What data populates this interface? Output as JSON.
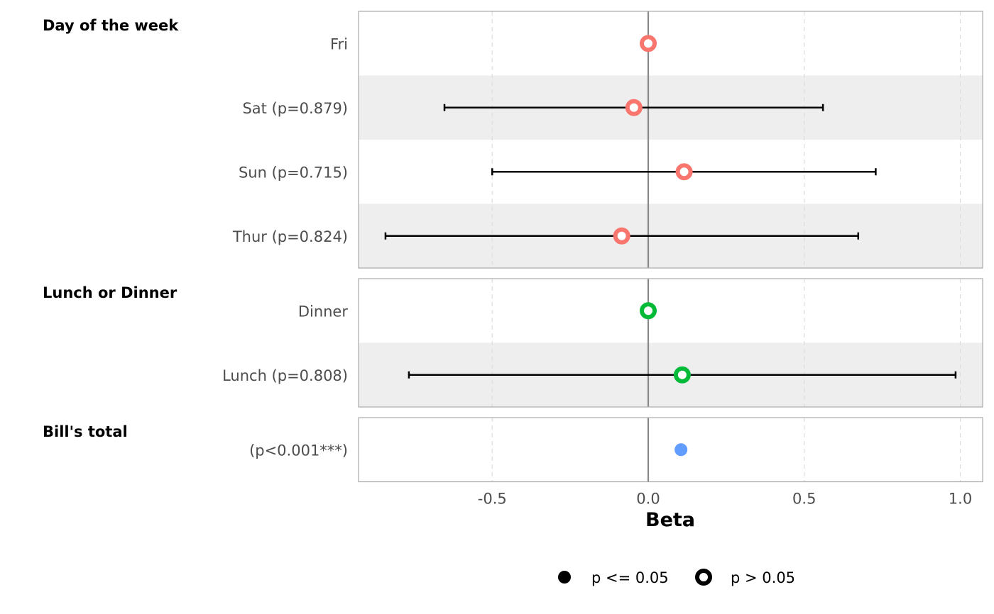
{
  "chart_data": {
    "type": "forest",
    "xlabel": "Beta",
    "xlim": [
      -0.93,
      1.07
    ],
    "x_ticks": [
      -0.5,
      0.0,
      0.5,
      1.0
    ],
    "x_tick_labels": [
      "-0.5",
      "0.0",
      "0.5",
      "1.0"
    ],
    "reference_line": 0,
    "grid": true,
    "legend_position": "bottom",
    "legend": [
      {
        "label": "p <= 0.05",
        "marker": "filled"
      },
      {
        "label": "p > 0.05",
        "marker": "hollow"
      }
    ],
    "colors": {
      "Day of the week": "#F8766D",
      "Lunch or Dinner": "#00BA38",
      "Bill's total": "#619CFF",
      "stripe": "#EEEEEE",
      "zero_line": "#888888",
      "grid": "#DDDDDD",
      "panel_border": "#AAAAAA"
    },
    "groups": [
      {
        "name": "Day of the week",
        "rows": [
          {
            "label": "Fri",
            "estimate": 0.0,
            "ci": null,
            "significant": false
          },
          {
            "label": "Sat (p=0.879)",
            "estimate": -0.046,
            "ci": [
              -0.653,
              0.56
            ],
            "significant": false
          },
          {
            "label": "Sun (p=0.715)",
            "estimate": 0.115,
            "ci": [
              -0.5,
              0.729
            ],
            "significant": false
          },
          {
            "label": "Thur (p=0.824)",
            "estimate": -0.085,
            "ci": [
              -0.842,
              0.673
            ],
            "significant": false
          }
        ]
      },
      {
        "name": "Lunch or Dinner",
        "rows": [
          {
            "label": "Dinner",
            "estimate": 0.0,
            "ci": null,
            "significant": false
          },
          {
            "label": "Lunch (p=0.808)",
            "estimate": 0.109,
            "ci": [
              -0.767,
              0.985
            ],
            "significant": false
          }
        ]
      },
      {
        "name": "Bill's total",
        "rows": [
          {
            "label": "(p<0.001***)",
            "estimate": 0.105,
            "ci": [
              0.091,
              0.119
            ],
            "significant": true
          }
        ]
      }
    ]
  }
}
